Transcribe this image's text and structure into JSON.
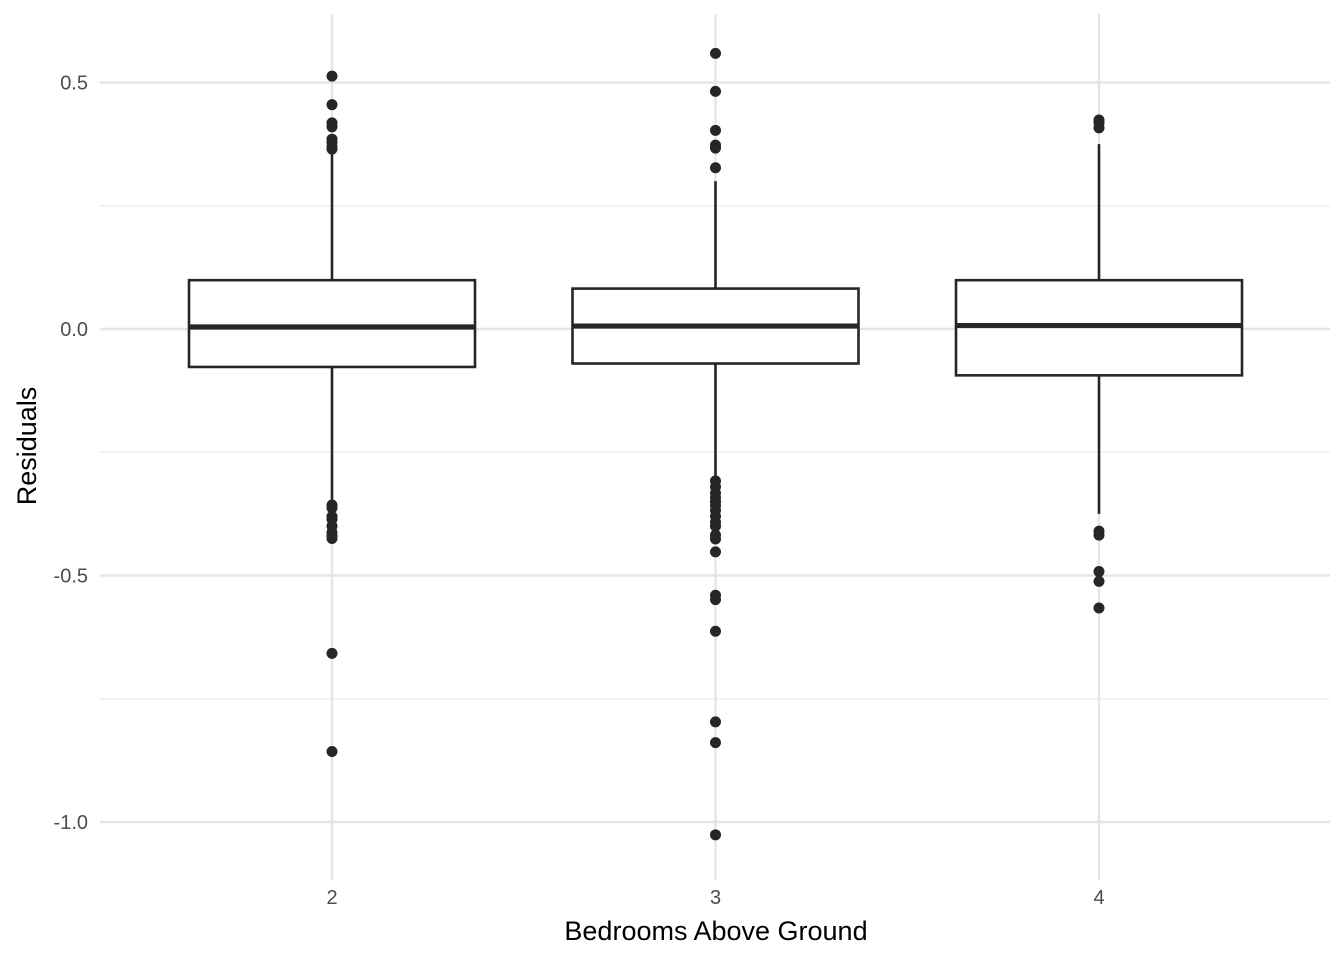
{
  "chart_data": {
    "type": "boxplot",
    "xlabel": "Bedrooms Above Ground",
    "ylabel": "Residuals",
    "categories": [
      "2",
      "3",
      "4"
    ],
    "ylim": [
      -1.1,
      0.6
    ],
    "y_ticks": [
      0.5,
      0.0,
      -0.5,
      -1.0
    ],
    "y_tick_labels": [
      "0.5",
      "0.0",
      "-0.5",
      "-1.0"
    ],
    "y_minor_ticks": [
      0.25,
      -0.25,
      -0.75
    ],
    "grid": true,
    "legend": "none",
    "boxes": [
      {
        "category": "2",
        "q1": -0.077,
        "median": 0.004,
        "q3": 0.099,
        "whisker_low": -0.35,
        "whisker_high": 0.36,
        "outliers": [
          0.513,
          0.455,
          0.418,
          0.41,
          0.385,
          0.378,
          0.37,
          0.365,
          -0.357,
          -0.363,
          -0.38,
          -0.386,
          -0.4,
          -0.413,
          -0.42,
          -0.425,
          -0.658,
          -0.857
        ]
      },
      {
        "category": "3",
        "q1": -0.07,
        "median": 0.006,
        "q3": 0.082,
        "whisker_low": -0.3,
        "whisker_high": 0.3,
        "outliers": [
          0.559,
          0.482,
          0.403,
          0.373,
          0.367,
          0.327,
          -0.308,
          -0.32,
          -0.333,
          -0.342,
          -0.35,
          -0.358,
          -0.368,
          -0.38,
          -0.392,
          -0.4,
          -0.418,
          -0.426,
          -0.452,
          -0.54,
          -0.549,
          -0.613,
          -0.797,
          -0.839,
          -1.026
        ]
      },
      {
        "category": "4",
        "q1": -0.094,
        "median": 0.007,
        "q3": 0.099,
        "whisker_low": -0.375,
        "whisker_high": 0.375,
        "outliers": [
          0.424,
          0.418,
          0.408,
          -0.41,
          -0.418,
          -0.492,
          -0.512,
          -0.566
        ]
      }
    ],
    "colors": {
      "box_stroke": "#262626",
      "box_fill": "#ffffff",
      "outlier": "#262626",
      "grid_major": "#e5e5e5",
      "grid_minor": "#eeeeee",
      "tick_text": "#4d4d4d",
      "title_text": "#000000"
    }
  }
}
